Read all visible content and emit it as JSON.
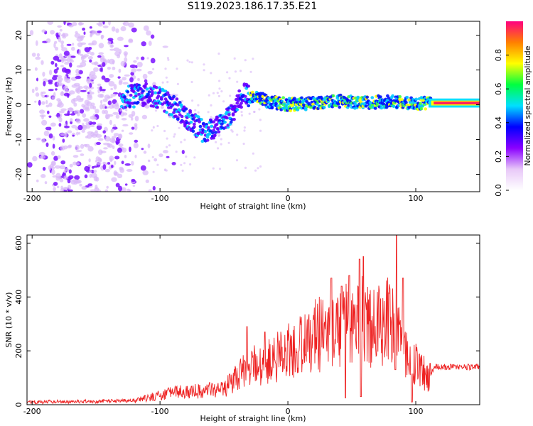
{
  "title": "S119.2023.186.17.35.E21",
  "chart_data": [
    {
      "type": "heatmap",
      "xlabel": "Height of straight line (km)",
      "ylabel": "Frequency (Hz)",
      "xlim": [
        -204,
        150
      ],
      "ylim": [
        -25,
        24
      ],
      "x_ticks": [
        -200,
        -100,
        0,
        100
      ],
      "y_ticks": [
        -20,
        -10,
        0,
        10,
        20
      ],
      "colorbar": {
        "label": "Normalized spectral amplitude",
        "range": [
          0,
          1
        ],
        "ticks": [
          0.0,
          0.2,
          0.4,
          0.6,
          0.8
        ],
        "colors": [
          "#ffffff",
          "#e8c8f8",
          "#8a00ff",
          "#0000ff",
          "#00e0ff",
          "#00ff40",
          "#ffff00",
          "#ff8000",
          "#ff0080"
        ]
      },
      "ridge": {
        "x": [
          -130,
          -110,
          -95,
          -85,
          -75,
          -65,
          -55,
          -45,
          -35,
          -25,
          -15,
          0,
          20,
          40,
          60,
          80,
          100,
          115,
          150
        ],
        "freq": [
          2,
          3,
          1,
          -2,
          -5,
          -8,
          -6,
          -3,
          3,
          2,
          1,
          0,
          0.5,
          1,
          0.5,
          1,
          0.5,
          0.5,
          0.5
        ]
      }
    },
    {
      "type": "line",
      "xlabel": "Height of straight line (km)",
      "ylabel": "SNR (10 * v/v)",
      "xlim": [
        -204,
        150
      ],
      "ylim": [
        0,
        630
      ],
      "x_ticks": [
        -200,
        -100,
        0,
        100
      ],
      "y_ticks": [
        0,
        200,
        400,
        600
      ],
      "color": "#ee2222",
      "envelope": {
        "x": [
          -204,
          -150,
          -120,
          -110,
          -90,
          -70,
          -50,
          -40,
          -30,
          -20,
          -10,
          0,
          10,
          20,
          30,
          40,
          50,
          60,
          70,
          80,
          90,
          100,
          110,
          115,
          150
        ],
        "snr": [
          10,
          12,
          15,
          25,
          45,
          50,
          60,
          100,
          140,
          150,
          170,
          200,
          220,
          250,
          270,
          300,
          300,
          310,
          300,
          320,
          200,
          150,
          100,
          140,
          140
        ]
      },
      "spikes": [
        {
          "x": 34,
          "snr": 470
        },
        {
          "x": 42,
          "snr": 440
        },
        {
          "x": 48,
          "snr": 480
        },
        {
          "x": 56,
          "snr": 540
        },
        {
          "x": 59,
          "snr": 550
        },
        {
          "x": 85,
          "snr": 630
        },
        {
          "x": 90,
          "snr": 470
        },
        {
          "x": -32,
          "snr": 290
        },
        {
          "x": -18,
          "snr": 270
        }
      ],
      "dips": [
        {
          "x": 45,
          "snr": 25
        },
        {
          "x": 57,
          "snr": 30
        },
        {
          "x": 84,
          "snr": 130
        },
        {
          "x": 97,
          "snr": 10
        }
      ]
    }
  ]
}
